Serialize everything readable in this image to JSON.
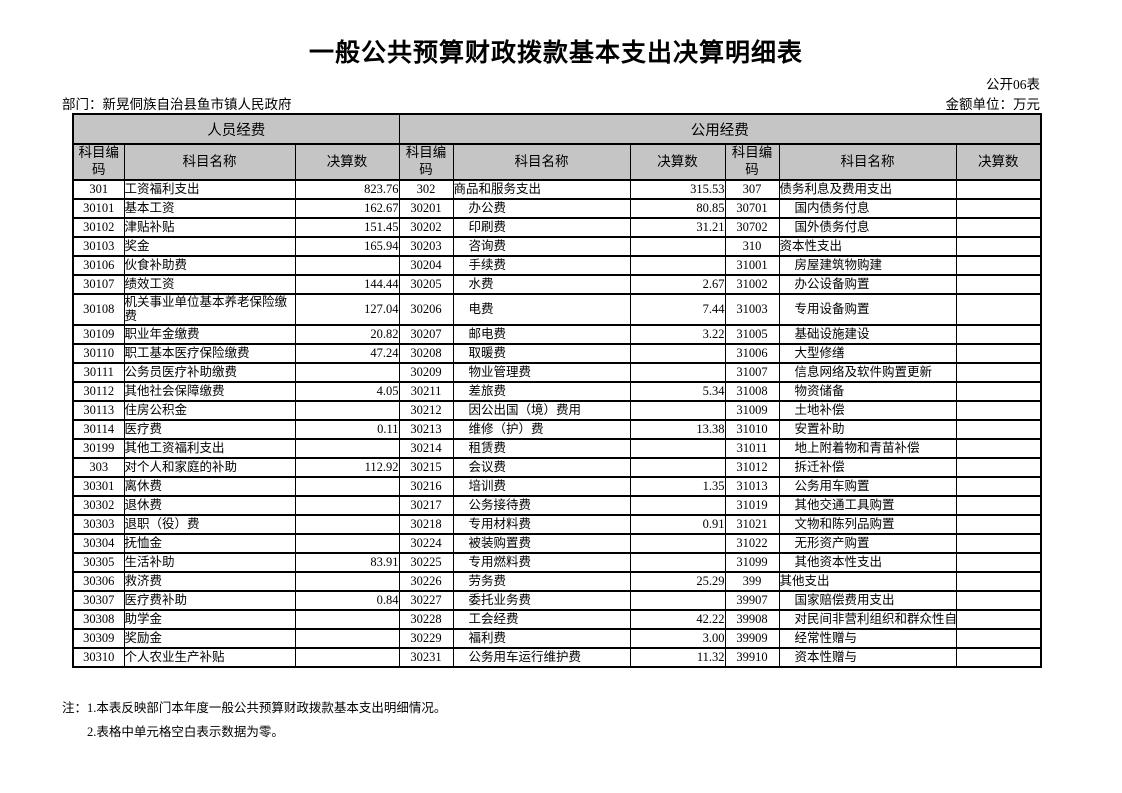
{
  "page": {
    "title": "一般公共预算财政拨款基本支出决算明细表",
    "doc_label": "公开06表",
    "department": "部门：新晃侗族自治县鱼市镇人民政府",
    "unit": "金额单位：万元",
    "notes": [
      "注：1.本表反映部门本年度一般公共预算财政拨款基本支出明细情况。",
      "2.表格中单元格空白表示数据为零。"
    ]
  },
  "table": {
    "header_bg_color": "#c5c5c5",
    "group_headers": [
      {
        "label": "人员经费",
        "colspan": 3
      },
      {
        "label": "公用经费",
        "colspan": 6
      }
    ],
    "column_headers": [
      "科目编码",
      "科目名称",
      "决算数"
    ],
    "rows": [
      [
        [
          "301",
          "工资福利支出",
          "823.76"
        ],
        [
          "302",
          "商品和服务支出",
          "315.53"
        ],
        [
          "307",
          "债务利息及费用支出",
          ""
        ]
      ],
      [
        [
          "30101",
          "基本工资",
          "162.67"
        ],
        [
          "30201",
          "办公费",
          "80.85"
        ],
        [
          "30701",
          "国内债务付息",
          ""
        ]
      ],
      [
        [
          "30102",
          "津贴补贴",
          "151.45"
        ],
        [
          "30202",
          "印刷费",
          "31.21"
        ],
        [
          "30702",
          "国外债务付息",
          ""
        ]
      ],
      [
        [
          "30103",
          "奖金",
          "165.94"
        ],
        [
          "30203",
          "咨询费",
          ""
        ],
        [
          "310",
          "资本性支出",
          ""
        ]
      ],
      [
        [
          "30106",
          "伙食补助费",
          ""
        ],
        [
          "30204",
          "手续费",
          ""
        ],
        [
          "31001",
          "房屋建筑物购建",
          ""
        ]
      ],
      [
        [
          "30107",
          "绩效工资",
          "144.44"
        ],
        [
          "30205",
          "水费",
          "2.67"
        ],
        [
          "31002",
          "办公设备购置",
          ""
        ]
      ],
      [
        [
          "30108",
          "机关事业单位基本养老保险缴费",
          "127.04"
        ],
        [
          "30206",
          "电费",
          "7.44"
        ],
        [
          "31003",
          "专用设备购置",
          ""
        ]
      ],
      [
        [
          "30109",
          "职业年金缴费",
          "20.82"
        ],
        [
          "30207",
          "邮电费",
          "3.22"
        ],
        [
          "31005",
          "基础设施建设",
          ""
        ]
      ],
      [
        [
          "30110",
          "职工基本医疗保险缴费",
          "47.24"
        ],
        [
          "30208",
          "取暖费",
          ""
        ],
        [
          "31006",
          "大型修缮",
          ""
        ]
      ],
      [
        [
          "30111",
          "公务员医疗补助缴费",
          ""
        ],
        [
          "30209",
          "物业管理费",
          ""
        ],
        [
          "31007",
          "信息网络及软件购置更新",
          ""
        ]
      ],
      [
        [
          "30112",
          "其他社会保障缴费",
          "4.05"
        ],
        [
          "30211",
          "差旅费",
          "5.34"
        ],
        [
          "31008",
          "物资储备",
          ""
        ]
      ],
      [
        [
          "30113",
          "住房公积金",
          ""
        ],
        [
          "30212",
          "因公出国（境）费用",
          ""
        ],
        [
          "31009",
          "土地补偿",
          ""
        ]
      ],
      [
        [
          "30114",
          "医疗费",
          "0.11"
        ],
        [
          "30213",
          "维修（护）费",
          "13.38"
        ],
        [
          "31010",
          "安置补助",
          ""
        ]
      ],
      [
        [
          "30199",
          "其他工资福利支出",
          ""
        ],
        [
          "30214",
          "租赁费",
          ""
        ],
        [
          "31011",
          "地上附着物和青苗补偿",
          ""
        ]
      ],
      [
        [
          "303",
          "对个人和家庭的补助",
          "112.92"
        ],
        [
          "30215",
          "会议费",
          ""
        ],
        [
          "31012",
          "拆迁补偿",
          ""
        ]
      ],
      [
        [
          "30301",
          "离休费",
          ""
        ],
        [
          "30216",
          "培训费",
          "1.35"
        ],
        [
          "31013",
          "公务用车购置",
          ""
        ]
      ],
      [
        [
          "30302",
          "退休费",
          ""
        ],
        [
          "30217",
          "公务接待费",
          ""
        ],
        [
          "31019",
          "其他交通工具购置",
          ""
        ]
      ],
      [
        [
          "30303",
          "退职（役）费",
          ""
        ],
        [
          "30218",
          "专用材料费",
          "0.91"
        ],
        [
          "31021",
          "文物和陈列品购置",
          ""
        ]
      ],
      [
        [
          "30304",
          "抚恤金",
          ""
        ],
        [
          "30224",
          "被装购置费",
          ""
        ],
        [
          "31022",
          "无形资产购置",
          ""
        ]
      ],
      [
        [
          "30305",
          "生活补助",
          "83.91"
        ],
        [
          "30225",
          "专用燃料费",
          ""
        ],
        [
          "31099",
          "其他资本性支出",
          ""
        ]
      ],
      [
        [
          "30306",
          "救济费",
          ""
        ],
        [
          "30226",
          "劳务费",
          "25.29"
        ],
        [
          "399",
          "其他支出",
          ""
        ]
      ],
      [
        [
          "30307",
          "医疗费补助",
          "0.84"
        ],
        [
          "30227",
          "委托业务费",
          ""
        ],
        [
          "39907",
          "国家赔偿费用支出",
          ""
        ]
      ],
      [
        [
          "30308",
          "助学金",
          ""
        ],
        [
          "30228",
          "工会经费",
          "42.22"
        ],
        [
          "39908",
          "对民间非营利组织和群众性自",
          ""
        ]
      ],
      [
        [
          "30309",
          "奖励金",
          ""
        ],
        [
          "30229",
          "福利费",
          "3.00"
        ],
        [
          "39909",
          "经常性赠与",
          ""
        ]
      ],
      [
        [
          "30310",
          "个人农业生产补贴",
          ""
        ],
        [
          "30231",
          "公务用车运行维护费",
          "11.32"
        ],
        [
          "39910",
          "资本性赠与",
          ""
        ]
      ]
    ]
  }
}
